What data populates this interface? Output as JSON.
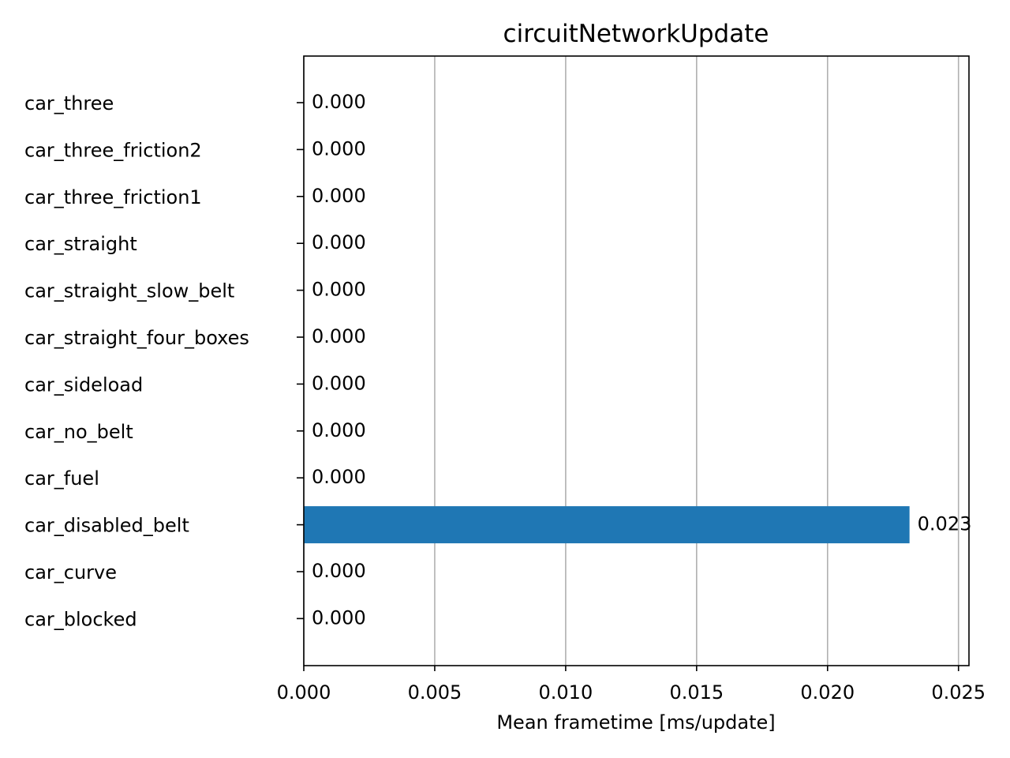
{
  "chart_data": {
    "type": "bar",
    "orientation": "horizontal",
    "title": "circuitNetworkUpdate",
    "xlabel": "Mean frametime [ms/update]",
    "ylabel": "",
    "categories": [
      "car_three",
      "car_three_friction2",
      "car_three_friction1",
      "car_straight",
      "car_straight_slow_belt",
      "car_straight_four_boxes",
      "car_sideload",
      "car_no_belt",
      "car_fuel",
      "car_disabled_belt",
      "car_curve",
      "car_blocked"
    ],
    "values": [
      0.0,
      0.0,
      0.0,
      0.0,
      0.0,
      0.0,
      0.0,
      0.0,
      0.0,
      0.02313,
      0.0,
      0.0
    ],
    "value_labels": [
      "0.000",
      "0.000",
      "0.000",
      "0.000",
      "0.000",
      "0.000",
      "0.000",
      "0.000",
      "0.000",
      "0.023",
      "0.000",
      "0.000"
    ],
    "xlim": [
      0,
      0.0254
    ],
    "xticks": [
      0.0,
      0.005,
      0.01,
      0.015,
      0.02,
      0.025
    ],
    "xtick_labels": [
      "0.000",
      "0.005",
      "0.010",
      "0.015",
      "0.020",
      "0.025"
    ],
    "grid": "x",
    "bar_color": "#1f77b4",
    "grid_color": "#b0b0b0"
  }
}
